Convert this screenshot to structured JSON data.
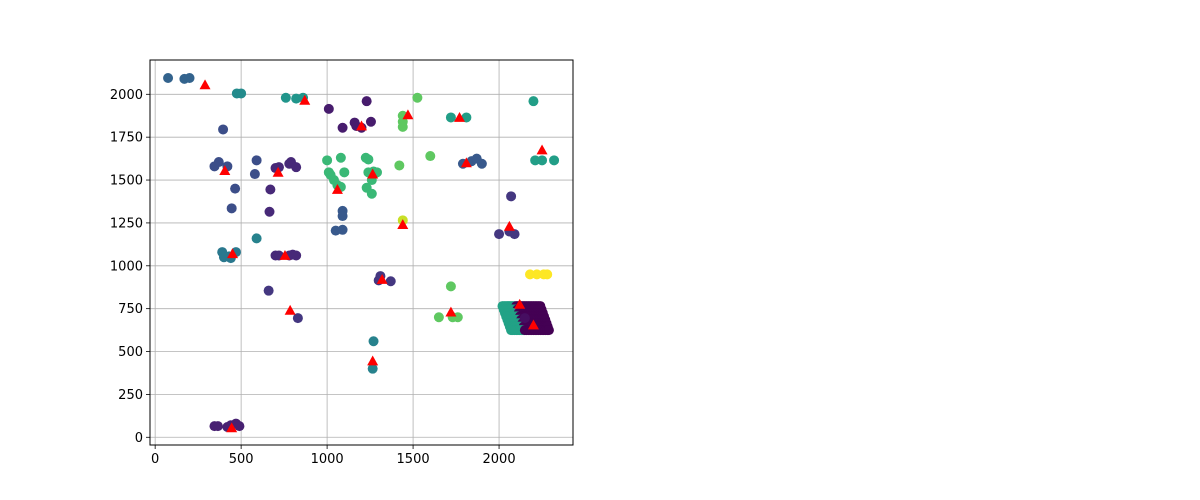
{
  "chart_data": {
    "type": "scatter",
    "title": "",
    "xlabel": "",
    "ylabel": "",
    "xlim": [
      -30,
      2430
    ],
    "ylim": [
      -45,
      2200
    ],
    "grid": true,
    "x_ticks": [
      0,
      500,
      1000,
      1500,
      2000
    ],
    "y_ticks": [
      0,
      250,
      500,
      750,
      1000,
      1250,
      1500,
      1750,
      2000
    ],
    "x_tick_labels": [
      "0",
      "500",
      "1000",
      "1500",
      "2000"
    ],
    "y_tick_labels": [
      "0",
      "250",
      "500",
      "750",
      "1000",
      "1250",
      "1500",
      "1750",
      "2000"
    ],
    "colormap": "viridis",
    "series": [
      {
        "marker": "circle",
        "points": [
          [
            75,
            2095,
            0.4
          ],
          [
            170,
            2090,
            0.4
          ],
          [
            200,
            2095,
            0.4
          ],
          [
            475,
            2005,
            0.6
          ],
          [
            500,
            2005,
            0.6
          ],
          [
            760,
            1980,
            0.65
          ],
          [
            820,
            1975,
            0.65
          ],
          [
            860,
            1980,
            0.65
          ],
          [
            1010,
            1915,
            0.1
          ],
          [
            1230,
            1960,
            0.1
          ],
          [
            1525,
            1980,
            0.85
          ],
          [
            1440,
            1875,
            0.85
          ],
          [
            1440,
            1840,
            0.85
          ],
          [
            1440,
            1810,
            0.85
          ],
          [
            1720,
            1865,
            0.7
          ],
          [
            1810,
            1865,
            0.7
          ],
          [
            2200,
            1960,
            0.7
          ],
          [
            395,
            1795,
            0.3
          ],
          [
            345,
            1580,
            0.3
          ],
          [
            370,
            1605,
            0.3
          ],
          [
            420,
            1580,
            0.3
          ],
          [
            465,
            1450,
            0.3
          ],
          [
            445,
            1335,
            0.3
          ],
          [
            590,
            1615,
            0.3
          ],
          [
            580,
            1535,
            0.3
          ],
          [
            590,
            1160,
            0.55
          ],
          [
            700,
            1570,
            0.15
          ],
          [
            720,
            1575,
            0.15
          ],
          [
            780,
            1595,
            0.15
          ],
          [
            790,
            1605,
            0.15
          ],
          [
            820,
            1575,
            0.15
          ],
          [
            670,
            1445,
            0.15
          ],
          [
            665,
            1315,
            0.15
          ],
          [
            660,
            855,
            0.2
          ],
          [
            830,
            695,
            0.2
          ],
          [
            1090,
            1805,
            0.1
          ],
          [
            1160,
            1835,
            0.1
          ],
          [
            1170,
            1815,
            0.1
          ],
          [
            1200,
            1805,
            0.1
          ],
          [
            1255,
            1840,
            0.1
          ],
          [
            1000,
            1615,
            0.8
          ],
          [
            1080,
            1630,
            0.8
          ],
          [
            1010,
            1545,
            0.8
          ],
          [
            1020,
            1530,
            0.8
          ],
          [
            1040,
            1500,
            0.8
          ],
          [
            1060,
            1470,
            0.8
          ],
          [
            1080,
            1460,
            0.8
          ],
          [
            1100,
            1545,
            0.8
          ],
          [
            1225,
            1630,
            0.8
          ],
          [
            1240,
            1620,
            0.8
          ],
          [
            1240,
            1545,
            0.8
          ],
          [
            1270,
            1550,
            0.8
          ],
          [
            1290,
            1545,
            0.8
          ],
          [
            1260,
            1500,
            0.8
          ],
          [
            1230,
            1455,
            0.8
          ],
          [
            1260,
            1420,
            0.8
          ],
          [
            1420,
            1585,
            0.85
          ],
          [
            1600,
            1640,
            0.85
          ],
          [
            1090,
            1320,
            0.35
          ],
          [
            1090,
            1290,
            0.35
          ],
          [
            1050,
            1205,
            0.35
          ],
          [
            1090,
            1210,
            0.35
          ],
          [
            1440,
            1265,
            0.95
          ],
          [
            390,
            1080,
            0.5
          ],
          [
            400,
            1050,
            0.5
          ],
          [
            430,
            1055,
            0.5
          ],
          [
            440,
            1045,
            0.5
          ],
          [
            470,
            1080,
            0.5
          ],
          [
            700,
            1060,
            0.15
          ],
          [
            720,
            1060,
            0.15
          ],
          [
            780,
            1060,
            0.15
          ],
          [
            800,
            1065,
            0.15
          ],
          [
            820,
            1060,
            0.15
          ],
          [
            1300,
            915,
            0.2
          ],
          [
            1310,
            940,
            0.2
          ],
          [
            1370,
            910,
            0.2
          ],
          [
            1270,
            560,
            0.55
          ],
          [
            1265,
            400,
            0.55
          ],
          [
            1720,
            880,
            0.85
          ],
          [
            1650,
            700,
            0.85
          ],
          [
            1730,
            700,
            0.85
          ],
          [
            1760,
            700,
            0.85
          ],
          [
            1790,
            1595,
            0.35
          ],
          [
            1840,
            1610,
            0.35
          ],
          [
            1870,
            1625,
            0.35
          ],
          [
            1900,
            1595,
            0.35
          ],
          [
            2070,
            1405,
            0.2
          ],
          [
            2000,
            1185,
            0.2
          ],
          [
            2060,
            1200,
            0.2
          ],
          [
            2090,
            1185,
            0.2
          ],
          [
            2180,
            950,
            1.0
          ],
          [
            2220,
            950,
            1.0
          ],
          [
            2260,
            950,
            1.0
          ],
          [
            2280,
            950,
            1.0
          ],
          [
            2210,
            1615,
            0.7
          ],
          [
            2250,
            1615,
            0.7
          ],
          [
            2320,
            1615,
            0.7
          ],
          [
            345,
            65,
            0.12
          ],
          [
            365,
            65,
            0.12
          ],
          [
            420,
            60,
            0.12
          ],
          [
            440,
            70,
            0.12
          ],
          [
            470,
            80,
            0.12
          ],
          [
            490,
            65,
            0.12
          ],
          [
            2150,
            695,
            0.05
          ]
        ]
      },
      {
        "marker": "triangle",
        "color": "#ff0000",
        "points": [
          [
            290,
            2055
          ],
          [
            870,
            1965
          ],
          [
            1470,
            1880
          ],
          [
            1770,
            1865
          ],
          [
            1810,
            1600
          ],
          [
            2250,
            1675
          ],
          [
            1200,
            1815
          ],
          [
            405,
            1555
          ],
          [
            715,
            1545
          ],
          [
            1265,
            1535
          ],
          [
            1060,
            1445
          ],
          [
            1440,
            1240
          ],
          [
            2060,
            1230
          ],
          [
            450,
            1070
          ],
          [
            755,
            1060
          ],
          [
            1320,
            920
          ],
          [
            785,
            740
          ],
          [
            1720,
            730
          ],
          [
            2120,
            775
          ],
          [
            2200,
            655
          ],
          [
            1265,
            445
          ],
          [
            445,
            55
          ]
        ]
      }
    ],
    "band": {
      "colors": [
        [
          "#22a884",
          0.6
        ],
        [
          "#440154",
          0.0
        ]
      ],
      "y_top": 765,
      "y_bottom": 625,
      "x_start_top": 2020,
      "x_end_top": 2240,
      "slant": 50
    }
  }
}
